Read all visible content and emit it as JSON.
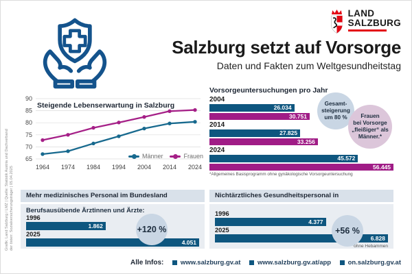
{
  "source_note": "Grafik: Land Salzburg / LMZ | Quelle: Statistik Austria und Dachverband\nder österr. Sozialversicherungsträger | 05.04.2025",
  "header": {
    "title": "Salzburg setzt auf Vorsorge",
    "subtitle": "Daten und Fakten zum Weltgesundheitstag",
    "logo": {
      "line1": "LAND",
      "line2": "SALZBURG"
    }
  },
  "colors": {
    "bar_blue": "#0e567f",
    "bar_magenta": "#a01c86",
    "line_men": "#17698e",
    "line_women": "#a51f87",
    "accent_red": "#e30613",
    "icon_navy": "#14538c",
    "bubble_blue": "#c9d6e4",
    "bubble_pink": "#dcc6da",
    "panel_header_bg": "#d9e1ea",
    "panel_body_bg": "#e9edf2"
  },
  "chart_data": {
    "life_expectancy": {
      "type": "line",
      "title": "Steigende Lebenserwartung in Salzburg",
      "x": [
        1964,
        1974,
        1984,
        1994,
        2004,
        2014,
        2024
      ],
      "ylim": [
        65,
        90
      ],
      "yticks": [
        65,
        70,
        75,
        80,
        85,
        90
      ],
      "grid": true,
      "legend_position": "bottom-right",
      "series": [
        {
          "name": "Männer",
          "color": "#17698e",
          "values": [
            67.0,
            68.2,
            71.4,
            74.4,
            77.6,
            79.7,
            80.4
          ]
        },
        {
          "name": "Frauen",
          "color": "#a51f87",
          "values": [
            72.8,
            75.0,
            77.9,
            80.1,
            82.4,
            84.8,
            85.3
          ]
        }
      ]
    },
    "vorsorge": {
      "type": "bar",
      "orientation": "horizontal",
      "title": "Vorsorgeuntersuchungen pro Jahr",
      "categories": [
        "2004",
        "2014",
        "2024"
      ],
      "xmax": 56445,
      "series": [
        {
          "name": "Männer",
          "color": "#0e567f",
          "values": [
            26034,
            27825,
            45572
          ],
          "labels": [
            "26.034",
            "27.825",
            "45.572"
          ]
        },
        {
          "name": "Frauen",
          "color": "#a01c86",
          "values": [
            30751,
            33256,
            56445
          ],
          "labels": [
            "30.751",
            "33.256",
            "56.445"
          ]
        }
      ],
      "annotation_increase": "Gesamt-\nsteigerung\num 80 %",
      "annotation_women": "Frauen\nbei Vorsorge\n„fleißiger“ als\nMänner.*",
      "footnote": "*Allgemeines Basisprogramm ohne gynäkologische Vorsorgeuntersuchung"
    },
    "aerzte": {
      "type": "bar",
      "orientation": "horizontal",
      "panel_title": "Mehr medizinisches Personal im Bundesland",
      "subtitle": "Berufsausübende Ärztinnen und Ärzte:",
      "categories": [
        "1996",
        "2025"
      ],
      "values": [
        1862,
        4051
      ],
      "labels": [
        "1.862",
        "4.051"
      ],
      "xmax": 4051,
      "badge": "+120 %"
    },
    "gesundheitspersonal": {
      "type": "bar",
      "orientation": "horizontal",
      "panel_title": "Nichtärztliches Gesundheitspersonal in Krankenanstalten*",
      "categories": [
        "1996",
        "2025"
      ],
      "values": [
        4377,
        6828
      ],
      "labels": [
        "4.377",
        "6.828"
      ],
      "xmax": 6828,
      "badge": "+56 %",
      "footnote": "*ohne Hebammen"
    }
  },
  "footer": {
    "label": "Alle Infos:",
    "links": [
      "www.salzburg.gv.at",
      "www.salzburg.gv.at/app",
      "on.salzburg.gv.at"
    ]
  }
}
